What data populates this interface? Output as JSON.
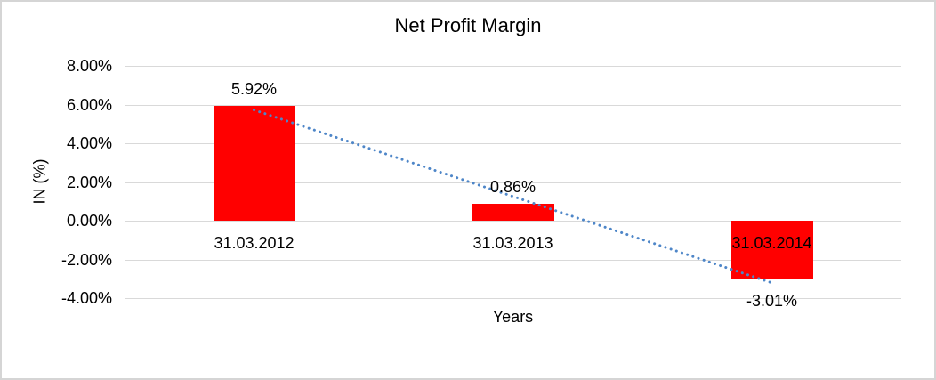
{
  "chart_data": {
    "type": "bar",
    "title": "Net Profit Margin",
    "xlabel": "Years",
    "ylabel": "IN (%)",
    "categories": [
      "31.03.2012",
      "31.03.2013",
      "31.03.2014"
    ],
    "values": [
      5.92,
      0.86,
      -3.01
    ],
    "data_labels": [
      "5.92%",
      "0.86%",
      "-3.01%"
    ],
    "yticks": [
      {
        "label": "8.00%",
        "value": 8
      },
      {
        "label": "6.00%",
        "value": 6
      },
      {
        "label": "4.00%",
        "value": 4
      },
      {
        "label": "2.00%",
        "value": 2
      },
      {
        "label": "0.00%",
        "value": 0
      },
      {
        "label": "-2.00%",
        "value": -2
      },
      {
        "label": "-4.00%",
        "value": -4
      }
    ],
    "ylim": [
      -4,
      8
    ],
    "grid": true,
    "legend": "none",
    "bar_color": "#FF0000",
    "gridline_color": "#D9D9D9",
    "frame_color": "#D5D5D5",
    "trendline": {
      "type": "linear",
      "style": "dotted",
      "color": "#4E86C8",
      "start_value": 5.72,
      "end_value": -3.21
    }
  }
}
